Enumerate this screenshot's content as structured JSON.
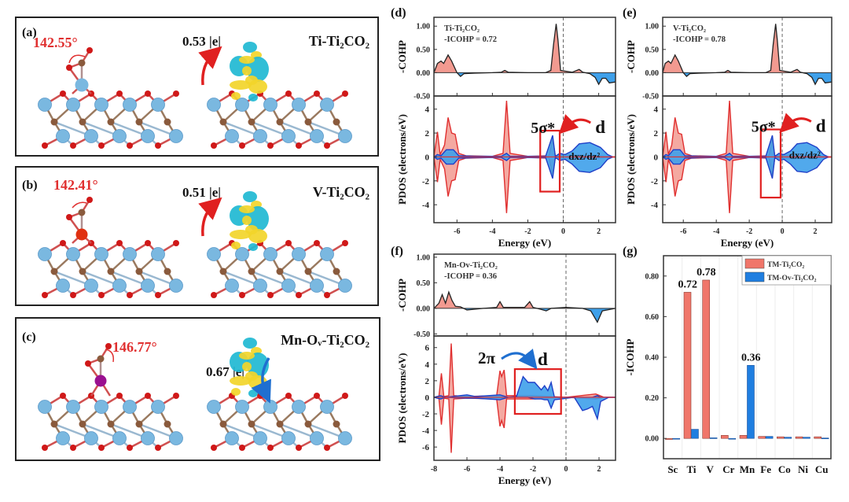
{
  "colors": {
    "red": "#e8403a",
    "red_fill": "#f29a90",
    "blue": "#1f3fc8",
    "blue_fill": "#3ea0ea",
    "ti_atom": "#7ab8e0",
    "c_atom": "#8a5a3c",
    "o_atom": "#d01818",
    "v_atom": "#e03010",
    "mn_atom": "#9a1090",
    "charge_cyan": "#1fb8d2",
    "charge_yellow": "#f2d52a"
  },
  "structures": [
    {
      "label": "(a)",
      "angle": "142.55°",
      "charge": "0.53 |e|",
      "name": "Ti-Ti₂CO₂",
      "arrow": "red-up"
    },
    {
      "label": "(b)",
      "angle": "142.41°",
      "charge": "0.51 |e|",
      "name": "V-Ti₂CO₂",
      "arrow": "red-up"
    },
    {
      "label": "(c)",
      "angle": "146.77°",
      "charge": "0.67 |e|",
      "name": "Mn-Oᵥ-Ti₂CO₂",
      "arrow": "blue-down"
    }
  ],
  "chart_data": [
    {
      "panel": "(d)",
      "type": "area",
      "system": "Ti-Ti₂CO₂",
      "icohp_text": "-ICOHP = 0.72",
      "xlabel": "Energy (eV)",
      "xlim": [
        -7.3,
        2.95
      ],
      "xticks": [
        -6,
        -4,
        -2,
        0,
        2
      ],
      "cohp": {
        "ylabel": "-COHP",
        "ylim": [
          -0.5,
          1.19
        ],
        "yticks": [
          "1.00",
          "0.50",
          "0.00",
          "-0.50"
        ],
        "points": [
          [
            -7.3,
            0
          ],
          [
            -7.1,
            0.2
          ],
          [
            -6.9,
            0.25
          ],
          [
            -6.75,
            0.2
          ],
          [
            -6.5,
            0.38
          ],
          [
            -6.3,
            0.25
          ],
          [
            -6.0,
            0
          ],
          [
            -5.8,
            -0.08
          ],
          [
            -5.6,
            -0.02
          ],
          [
            -5,
            -0.01
          ],
          [
            -4,
            0
          ],
          [
            -3.5,
            0.01
          ],
          [
            -3.3,
            0.05
          ],
          [
            -3.1,
            0.01
          ],
          [
            -2,
            0
          ],
          [
            -1,
            0
          ],
          [
            -0.7,
            0.05
          ],
          [
            -0.55,
            0.6
          ],
          [
            -0.4,
            1.05
          ],
          [
            -0.3,
            0.7
          ],
          [
            -0.15,
            0.05
          ],
          [
            0.5,
            0.01
          ],
          [
            0.9,
            0.07
          ],
          [
            1.1,
            0.01
          ],
          [
            1.5,
            -0.02
          ],
          [
            1.8,
            -0.1
          ],
          [
            2,
            -0.25
          ],
          [
            2.2,
            -0.12
          ],
          [
            2.4,
            -0.12
          ],
          [
            2.6,
            -0.22
          ],
          [
            2.95,
            -0.2
          ]
        ]
      },
      "pdos": {
        "ylabel": "PDOS (electrons/eV)",
        "ylim": [
          -5.5,
          5.1
        ],
        "yticks": [
          4,
          2,
          0,
          -2,
          -4
        ],
        "red": [
          [
            -7.3,
            0,
            0
          ],
          [
            -7.1,
            2.1,
            -2.1
          ],
          [
            -6.95,
            0.2,
            -0.2
          ],
          [
            -6.7,
            1,
            -1
          ],
          [
            -6.5,
            3.3,
            -3.3
          ],
          [
            -6.3,
            2,
            -2
          ],
          [
            -6.1,
            1.9,
            -1.9
          ],
          [
            -5.9,
            0.3,
            -0.3
          ],
          [
            -5.5,
            0.1,
            -0.1
          ],
          [
            -4,
            0.05,
            -0.05
          ],
          [
            -3.4,
            0.3,
            -0.3
          ],
          [
            -3.2,
            4.7,
            -4.7
          ],
          [
            -3.0,
            0.3,
            -0.3
          ],
          [
            -2,
            0.05,
            -0.05
          ],
          [
            -0.8,
            0.1,
            -0.1
          ],
          [
            -0.6,
            1.5,
            -1.5
          ],
          [
            -0.45,
            0.1,
            -0.1
          ],
          [
            0,
            0.15,
            -0.15
          ],
          [
            2,
            0.1,
            -0.1
          ],
          [
            2.95,
            0,
            0
          ]
        ],
        "blue": [
          [
            -7.3,
            0,
            0
          ],
          [
            -7.1,
            0.2,
            -0.2
          ],
          [
            -6.9,
            0.1,
            -0.1
          ],
          [
            -6.6,
            0.6,
            -0.6
          ],
          [
            -6.2,
            0.6,
            -0.6
          ],
          [
            -5.9,
            0.1,
            -0.1
          ],
          [
            -5,
            0.05,
            -0.05
          ],
          [
            -3.5,
            0.05,
            -0.05
          ],
          [
            -3.2,
            0.3,
            -0.3
          ],
          [
            -3.0,
            0.05,
            -0.05
          ],
          [
            -1,
            0.05,
            -0.05
          ],
          [
            -0.6,
            1.8,
            -1.8
          ],
          [
            -0.45,
            0.05,
            -0.05
          ],
          [
            -0.2,
            0.3,
            -0.3
          ],
          [
            0.1,
            0.2,
            -0.2
          ],
          [
            0.5,
            0.5,
            -0.6
          ],
          [
            0.9,
            1.1,
            -1.2
          ],
          [
            1.5,
            1.2,
            -1.3
          ],
          [
            2.1,
            0.8,
            -0.9
          ],
          [
            2.5,
            0.2,
            -0.2
          ],
          [
            2.8,
            0,
            0
          ]
        ]
      },
      "annotations": {
        "from": "5σ*",
        "to": "d",
        "orbital": "dxz/dz²",
        "box_energy": [
          -1.3,
          -0.2
        ],
        "box_pdos": [
          2.2,
          -2.9
        ]
      }
    },
    {
      "panel": "(e)",
      "type": "area",
      "system": "V-Ti₂CO₂",
      "icohp_text": "-ICOHP = 0.78",
      "xlabel": "Energy (eV)",
      "xlim": [
        -7.25,
        3
      ],
      "xticks": [
        -6,
        -4,
        -2,
        0,
        2
      ],
      "cohp": {
        "ylabel": "-COHP",
        "ylim": [
          -0.5,
          1.19
        ],
        "yticks": [
          "1.00",
          "0.50",
          "0.00",
          "-0.50"
        ],
        "points": [
          [
            -7.25,
            0
          ],
          [
            -7.1,
            0.2
          ],
          [
            -6.9,
            0.25
          ],
          [
            -6.75,
            0.2
          ],
          [
            -6.5,
            0.38
          ],
          [
            -6.3,
            0.25
          ],
          [
            -6.0,
            0
          ],
          [
            -5.8,
            -0.08
          ],
          [
            -5.6,
            -0.02
          ],
          [
            -5,
            -0.01
          ],
          [
            -4,
            0
          ],
          [
            -3.5,
            0.01
          ],
          [
            -3.3,
            0.05
          ],
          [
            -3.1,
            0.01
          ],
          [
            -2,
            0
          ],
          [
            -1,
            0
          ],
          [
            -0.7,
            0.05
          ],
          [
            -0.55,
            0.6
          ],
          [
            -0.4,
            1.05
          ],
          [
            -0.3,
            0.7
          ],
          [
            -0.15,
            0.05
          ],
          [
            0.5,
            0.01
          ],
          [
            0.9,
            0.07
          ],
          [
            1.1,
            0.01
          ],
          [
            1.5,
            -0.02
          ],
          [
            1.8,
            -0.1
          ],
          [
            2,
            -0.25
          ],
          [
            2.2,
            -0.12
          ],
          [
            2.4,
            -0.12
          ],
          [
            2.6,
            -0.22
          ],
          [
            3,
            -0.2
          ]
        ]
      },
      "pdos": {
        "ylabel": "PDOS (electrons/eV)",
        "ylim": [
          -5.5,
          5.1
        ],
        "yticks": [
          4,
          2,
          0,
          -2,
          -4
        ],
        "red": [
          [
            -7.25,
            0,
            0
          ],
          [
            -7.05,
            2.1,
            -2.1
          ],
          [
            -6.9,
            0.2,
            -0.2
          ],
          [
            -6.7,
            1,
            -1
          ],
          [
            -6.5,
            3.3,
            -3.3
          ],
          [
            -6.3,
            2,
            -2
          ],
          [
            -6.1,
            1.9,
            -1.9
          ],
          [
            -5.9,
            0.3,
            -0.3
          ],
          [
            -5.5,
            0.1,
            -0.1
          ],
          [
            -4,
            0.05,
            -0.05
          ],
          [
            -3.4,
            0.3,
            -0.3
          ],
          [
            -3.2,
            4.7,
            -4.7
          ],
          [
            -3.0,
            0.3,
            -0.3
          ],
          [
            -2,
            0.05,
            -0.05
          ],
          [
            -0.8,
            0.1,
            -0.1
          ],
          [
            -0.6,
            1.5,
            -1.5
          ],
          [
            -0.45,
            0.1,
            -0.1
          ],
          [
            0,
            0.15,
            -0.15
          ],
          [
            2,
            0.1,
            -0.1
          ],
          [
            3,
            0,
            0
          ]
        ],
        "blue": [
          [
            -7.25,
            0,
            0
          ],
          [
            -7.05,
            0.2,
            -0.2
          ],
          [
            -6.9,
            0.1,
            -0.1
          ],
          [
            -6.6,
            0.6,
            -0.6
          ],
          [
            -6.2,
            0.6,
            -0.6
          ],
          [
            -5.9,
            0.1,
            -0.1
          ],
          [
            -5,
            0.05,
            -0.05
          ],
          [
            -3.5,
            0.05,
            -0.05
          ],
          [
            -3.2,
            0.3,
            -0.3
          ],
          [
            -3.0,
            0.05,
            -0.05
          ],
          [
            -1,
            0.05,
            -0.05
          ],
          [
            -0.6,
            1.8,
            -1.8
          ],
          [
            -0.45,
            0.05,
            -0.05
          ],
          [
            -0.2,
            0.3,
            -0.3
          ],
          [
            0.1,
            0.2,
            -0.2
          ],
          [
            0.5,
            0.5,
            -0.6
          ],
          [
            0.9,
            1.1,
            -1.2
          ],
          [
            1.5,
            1.2,
            -1.3
          ],
          [
            2.1,
            0.8,
            -0.9
          ],
          [
            2.5,
            0.2,
            -0.2
          ],
          [
            2.8,
            0,
            0
          ]
        ]
      },
      "annotations": {
        "from": "5σ*",
        "to": "d",
        "orbital": "dxz/dz²",
        "box_energy": [
          -1.3,
          -0.1
        ],
        "box_pdos": [
          2.3,
          -3.4
        ]
      }
    },
    {
      "panel": "(f)",
      "type": "area",
      "system": "Mn-Ov-Ti₂CO₂",
      "icohp_text": "-ICOHP = 0.36",
      "xlabel": "Energy (eV)",
      "xlim": [
        -8,
        3
      ],
      "xticks": [
        -8,
        -6,
        -4,
        -2,
        0,
        2
      ],
      "cohp": {
        "ylabel": "-COHP",
        "ylim": [
          -0.54,
          1.06
        ],
        "yticks": [
          "1.00",
          "0.50",
          "0.00",
          "-0.50"
        ],
        "points": [
          [
            -8,
            0
          ],
          [
            -7.7,
            0.1
          ],
          [
            -7.5,
            0.27
          ],
          [
            -7.3,
            0.1
          ],
          [
            -7.1,
            0.32
          ],
          [
            -6.9,
            0.15
          ],
          [
            -6.7,
            0.04
          ],
          [
            -6.4,
            0.03
          ],
          [
            -6,
            -0.03
          ],
          [
            -5,
            0
          ],
          [
            -4.2,
            0.02
          ],
          [
            -4,
            0.13
          ],
          [
            -3.8,
            0.02
          ],
          [
            -2.5,
            0.02
          ],
          [
            -2.2,
            0.13
          ],
          [
            -2,
            0.02
          ],
          [
            -1.5,
            -0.02
          ],
          [
            -1.2,
            -0.05
          ],
          [
            -0.9,
            0
          ],
          [
            0,
            0.02
          ],
          [
            1,
            0
          ],
          [
            1.5,
            -0.05
          ],
          [
            1.9,
            -0.27
          ],
          [
            2.2,
            -0.05
          ],
          [
            3,
            0
          ]
        ]
      },
      "pdos": {
        "ylabel": "PDOS (electrons/eV)",
        "ylim": [
          -7.6,
          7.4
        ],
        "yticks": [
          6,
          4,
          2,
          0,
          -2,
          -4,
          -6
        ],
        "red": [
          [
            -8,
            0,
            0
          ],
          [
            -7.7,
            0.1,
            -0.1
          ],
          [
            -7.55,
            2.9,
            -3.3
          ],
          [
            -7.4,
            0.1,
            -0.1
          ],
          [
            -7.1,
            0.2,
            -0.2
          ],
          [
            -6.95,
            6.5,
            -6.7
          ],
          [
            -6.8,
            0.2,
            -0.2
          ],
          [
            -6,
            0.1,
            -0.1
          ],
          [
            -4.2,
            0.2,
            -0.2
          ],
          [
            -4.0,
            3.2,
            -3.5
          ],
          [
            -3.9,
            2.5,
            -2.8
          ],
          [
            -3.75,
            3.3,
            -3.7
          ],
          [
            -3.6,
            0.2,
            -0.2
          ],
          [
            -2,
            0.2,
            -0.2
          ],
          [
            -1,
            0.1,
            -0.1
          ],
          [
            0,
            0,
            0
          ],
          [
            1.8,
            0.4,
            -0.2
          ],
          [
            2.3,
            0,
            0
          ],
          [
            3,
            0,
            0
          ]
        ],
        "blue": [
          [
            -8,
            0,
            0
          ],
          [
            -7.6,
            0.2,
            -0.2
          ],
          [
            -7.3,
            0,
            0
          ],
          [
            -6,
            0.3,
            -0.1
          ],
          [
            -5.5,
            0.1,
            -0.1
          ],
          [
            -4,
            0.3,
            -0.3
          ],
          [
            -3.5,
            0,
            0
          ],
          [
            -3,
            0.1,
            0
          ],
          [
            -2.6,
            2.5,
            0
          ],
          [
            -2.3,
            1.8,
            0
          ],
          [
            -1.9,
            1.8,
            -0.2
          ],
          [
            -1.5,
            0.9,
            -0.2
          ],
          [
            -1.3,
            1.4,
            -0.3
          ],
          [
            -1.1,
            0.8,
            -0.3
          ],
          [
            -0.9,
            1.8,
            -1.3
          ],
          [
            -0.7,
            0,
            -0.3
          ],
          [
            -0.3,
            0,
            -0.2
          ],
          [
            0.5,
            0,
            0
          ],
          [
            1,
            0,
            -1.6
          ],
          [
            1.3,
            0,
            -1.4
          ],
          [
            1.6,
            0,
            -1.1
          ],
          [
            1.9,
            0.2,
            -2.6
          ],
          [
            2.1,
            0,
            -0.5
          ],
          [
            2.6,
            0,
            0
          ],
          [
            3,
            0,
            0
          ]
        ]
      },
      "annotations": {
        "from": "2π",
        "to": "d",
        "box_energy": [
          -3.1,
          -0.3
        ],
        "box_pdos": [
          3.4,
          -2.0
        ]
      }
    },
    {
      "panel": "(g)",
      "type": "bar",
      "categories": [
        "Sc",
        "Ti",
        "V",
        "Cr",
        "Mn",
        "Fe",
        "Co",
        "Ni",
        "Cu"
      ],
      "series": [
        {
          "name": "TM-Ti₂CO₂",
          "color": "#f0766a",
          "values": [
            -0.005,
            0.72,
            0.78,
            0.015,
            0.015,
            0.01,
            0.008,
            0.008,
            0.008
          ]
        },
        {
          "name": "TM-Ov-Ti₂CO₂",
          "color": "#1f7ee0",
          "values": [
            0.0,
            0.045,
            0.003,
            0.0,
            0.36,
            0.01,
            0.006,
            0.006,
            0.002
          ]
        }
      ],
      "data_labels": [
        {
          "category": "Ti",
          "text": "0.72"
        },
        {
          "category": "V",
          "text": "0.78"
        },
        {
          "category": "Mn",
          "text": "0.36"
        }
      ],
      "ylabel": "-ICOHP",
      "ylim": [
        -0.1,
        0.9
      ],
      "yticks": [
        "0.00",
        "0.20",
        "0.40",
        "0.60",
        "0.80"
      ],
      "legend": "top-right",
      "grid": "vertical-light"
    }
  ]
}
